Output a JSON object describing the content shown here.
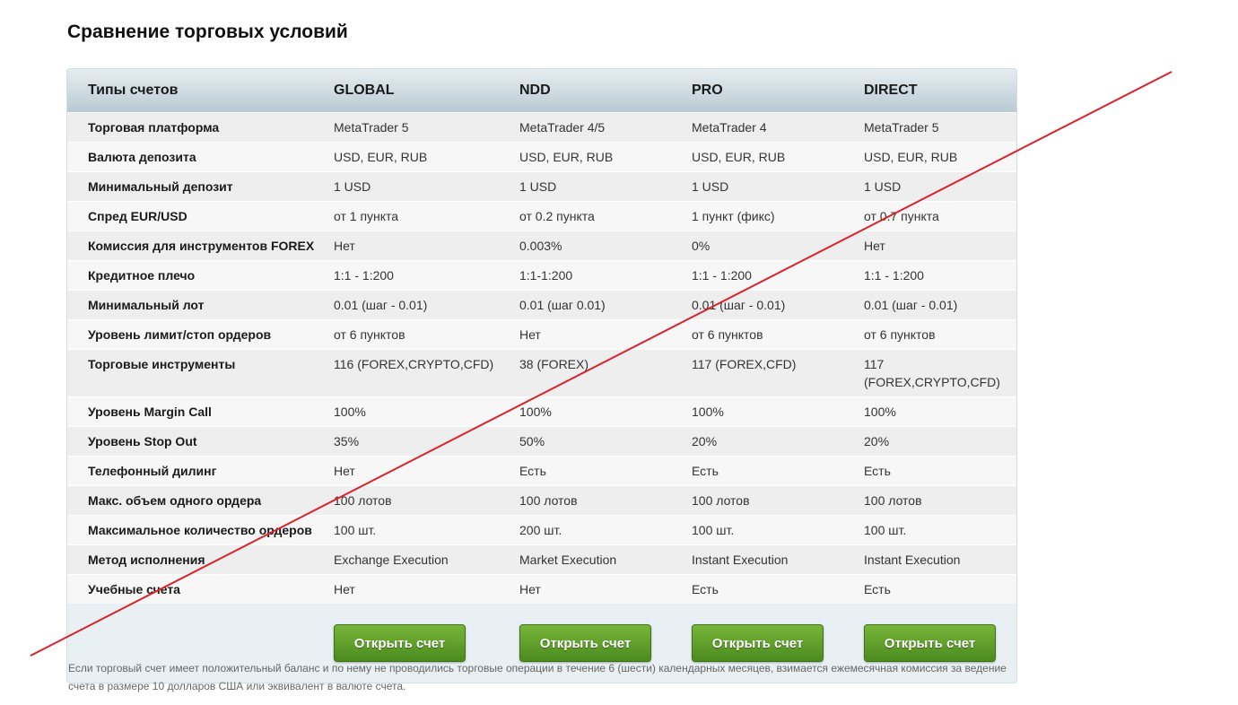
{
  "title": "Сравнение торговых условий",
  "header": [
    "Типы счетов",
    "GLOBAL",
    "NDD",
    "PRO",
    "DIRECT"
  ],
  "rows": [
    [
      "Торговая платформа",
      "MetaTrader 5",
      "MetaTrader 4/5",
      "MetaTrader 4",
      "MetaTrader 5"
    ],
    [
      "Валюта депозита",
      "USD, EUR, RUB",
      "USD, EUR, RUB",
      "USD, EUR, RUB",
      "USD, EUR, RUB"
    ],
    [
      "Минимальный депозит",
      "1 USD",
      "1 USD",
      "1 USD",
      "1 USD"
    ],
    [
      "Спред EUR/USD",
      "от 1 пункта",
      "от 0.2 пункта",
      "1 пункт (фикс)",
      "от 0.7 пункта"
    ],
    [
      "Комиссия для инструментов FOREX",
      "Нет",
      "0.003%",
      "0%",
      "Нет"
    ],
    [
      "Кредитное плечо",
      "1:1 - 1:200",
      "1:1-1:200",
      "1:1 - 1:200",
      "1:1 - 1:200"
    ],
    [
      "Минимальный лот",
      "0.01 (шаг - 0.01)",
      "0.01 (шаг 0.01)",
      "0.01 (шаг - 0.01)",
      "0.01 (шаг - 0.01)"
    ],
    [
      "Уровень лимит/стоп ордеров",
      "от 6 пунктов",
      "Нет",
      "от 6 пунктов",
      "от 6 пунктов"
    ],
    [
      "Торговые инструменты",
      "116 (FOREX,CRYPTO,CFD)",
      "38 (FOREX)",
      "117 (FOREX,CFD)",
      "117 (FOREX,CRYPTO,CFD)"
    ],
    [
      "Уровень Margin Call",
      "100%",
      "100%",
      "100%",
      "100%"
    ],
    [
      "Уровень Stop Out",
      "35%",
      "50%",
      "20%",
      "20%"
    ],
    [
      "Телефонный дилинг",
      "Нет",
      "Есть",
      "Есть",
      "Есть"
    ],
    [
      "Макс. объем одного ордера",
      "100 лотов",
      "100 лотов",
      "100 лотов",
      "100 лотов"
    ],
    [
      "Максимальное количество ордеров",
      "100 шт.",
      "200 шт.",
      "100 шт.",
      "100 шт."
    ],
    [
      "Метод исполнения",
      "Exchange Execution",
      "Market Execution",
      "Instant Execution",
      "Instant Execution"
    ],
    [
      "Учебные счета",
      "Нет",
      "Нет",
      "Есть",
      "Есть"
    ]
  ],
  "open_account_label": "Открыть счет",
  "note": "Если торговый счет имеет положительный баланс и по нему не проводились торговые операции в течение 6 (шести) календарных месяцев, взимается ежемесячная комиссия за ведение счета в размере 10 долларов США или эквивалент в валюте счета.",
  "colors": {
    "button": "#5a9a28",
    "strike_line": "#d9232d"
  }
}
